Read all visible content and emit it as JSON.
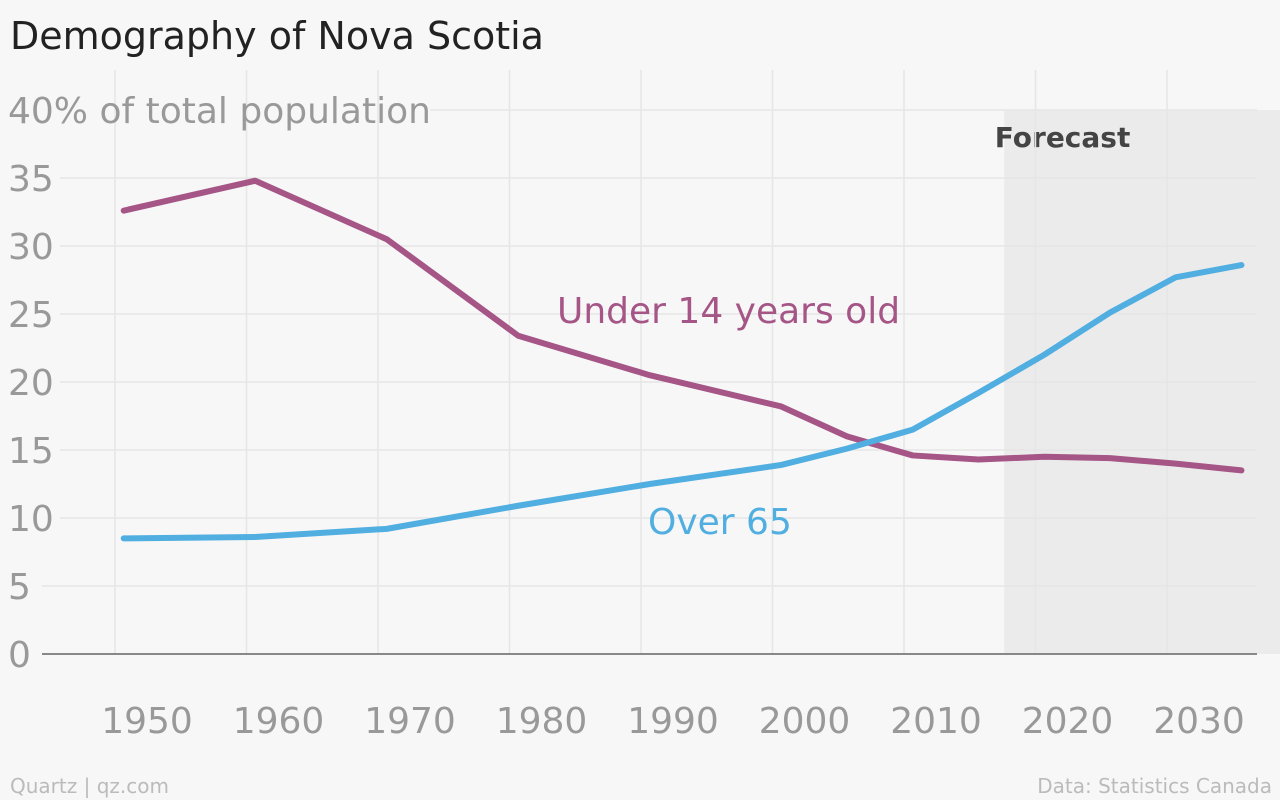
{
  "chart_data": {
    "type": "line",
    "title": "Demography of Nova Scotia",
    "ylabel": "% of total population",
    "ylim": [
      0,
      40
    ],
    "xlim": [
      1947,
      2036
    ],
    "yticks": [
      0,
      5,
      10,
      15,
      20,
      25,
      30,
      35,
      40
    ],
    "xticks": [
      1950,
      1960,
      1970,
      1980,
      1990,
      2000,
      2010,
      2020,
      2030
    ],
    "grid": true,
    "forecast": {
      "label": "Forecast",
      "start": 2015,
      "end": 2036,
      "color": "#ebebeb"
    },
    "series": [
      {
        "name": "Under 14 years old",
        "color": "#a55586",
        "x": [
          1951,
          1961,
          1971,
          1981,
          1991,
          2001,
          2006,
          2011,
          2016,
          2021,
          2026,
          2031,
          2036
        ],
        "values": [
          32.6,
          34.8,
          30.5,
          23.4,
          20.5,
          18.2,
          16.0,
          14.6,
          14.3,
          14.5,
          14.4,
          14.0,
          13.5
        ]
      },
      {
        "name": "Over 65",
        "color": "#51aee0",
        "x": [
          1951,
          1961,
          1971,
          1981,
          1991,
          2001,
          2006,
          2011,
          2016,
          2021,
          2026,
          2031,
          2036
        ],
        "values": [
          8.5,
          8.6,
          9.2,
          10.9,
          12.5,
          13.9,
          15.1,
          16.5,
          19.2,
          22.0,
          25.1,
          27.7,
          28.6
        ]
      }
    ]
  },
  "footer": {
    "left": "Quartz | qz.com",
    "right": "Data: Statistics Canada"
  }
}
